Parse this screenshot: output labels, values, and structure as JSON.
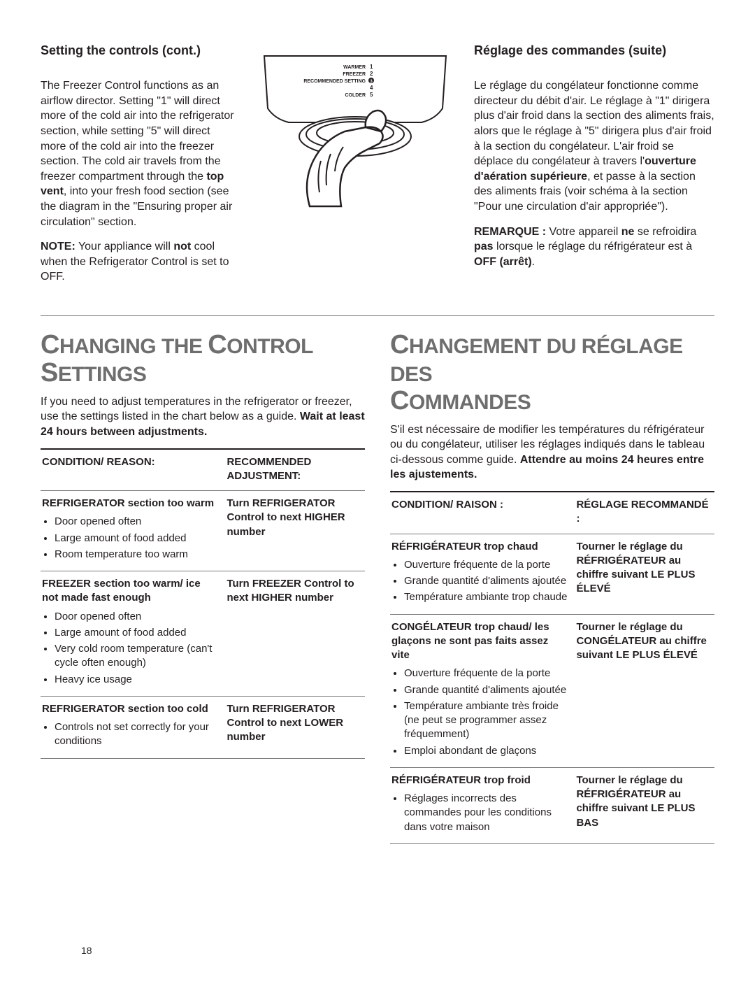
{
  "page_number": "18",
  "top": {
    "left": {
      "heading": "Setting the controls (cont.)",
      "p1_a": "The Freezer Control functions as an airflow director. Setting \"1\" will direct more of the cold air into the refrigerator section, while setting \"5\" will direct more of the cold air into the freezer section. The cold air travels from the freezer compartment through the ",
      "p1_bold": "top vent",
      "p1_b": ", into your fresh food section (see the diagram in the \"Ensuring proper air circulation\" section.",
      "p2_a": "NOTE:",
      "p2_b": " Your appliance will ",
      "p2_c": "not",
      "p2_d": " cool when the Refrigerator Control is set to OFF."
    },
    "dial": {
      "labels": [
        "WARMER",
        "FREEZER",
        "RECOMMENDED SETTING",
        "",
        "COLDER"
      ],
      "nums": [
        "1",
        "2",
        "3",
        "4",
        "5"
      ]
    },
    "right": {
      "heading": "Réglage des commandes (suite)",
      "p1_a": "Le réglage du congélateur fonctionne comme directeur du débit d'air. Le réglage à \"1\" dirigera plus d'air froid dans la section des aliments frais, alors que le réglage à \"5\" dirigera plus d'air froid à la section du congélateur. L'air froid se déplace du congélateur à travers l'",
      "p1_bold": "ouverture d'aération supérieure",
      "p1_b": ", et passe à la section des aliments frais (voir schéma à la section \"Pour une circulation d'air appropriée\").",
      "p2_a": "REMARQUE :",
      "p2_b": " Votre appareil ",
      "p2_c": "ne",
      "p2_d": " se refroidira ",
      "p2_e": "pas",
      "p2_f": " lorsque le réglage du réfrigérateur est à ",
      "p2_g": "OFF (arrêt)",
      "p2_h": "."
    }
  },
  "left": {
    "title_a": "C",
    "title_b": "HANGING THE ",
    "title_c": "C",
    "title_d": "ONTROL ",
    "title_e": "S",
    "title_f": "ETTINGS",
    "intro_a": "If you need to adjust temperatures in the refrigerator or freezer, use the settings listed in the chart below as a guide. ",
    "intro_b": "Wait at least 24 hours between adjustments.",
    "th1": "CONDITION/ REASON:",
    "th2": "RECOMMENDED ADJUSTMENT:",
    "rows": [
      {
        "cond_title": "REFRIGERATOR section too warm",
        "bullets": [
          "Door opened often",
          "Large amount of food added",
          "Room temperature too warm"
        ],
        "rec": "Turn REFRIGERATOR Control to next HIGHER number"
      },
      {
        "cond_title": "FREEZER section too warm/ ice not made fast enough",
        "bullets": [
          "Door opened often",
          "Large amount of food added",
          "Very cold room temperature (can't cycle often enough)",
          "Heavy ice usage"
        ],
        "rec": "Turn FREEZER Control to next HIGHER number"
      },
      {
        "cond_title": "REFRIGERATOR section too cold",
        "bullets": [
          "Controls not set correctly for your conditions"
        ],
        "rec": "Turn REFRIGERATOR Control to next LOWER number"
      }
    ]
  },
  "right": {
    "title_a": "C",
    "title_b": "HANGEMENT DU RÉGLAGE DES ",
    "title_c": "C",
    "title_d": "OMMANDES",
    "intro_a": "S'il est nécessaire de modifier les températures du réfrigérateur ou du congélateur, utiliser les réglages indiqués dans le tableau ci-dessous comme guide. ",
    "intro_b": "Attendre au moins 24 heures entre les ajustements.",
    "th1": "CONDITION/ RAISON :",
    "th2": "RÉGLAGE RECOMMANDÉ :",
    "rows": [
      {
        "cond_title": "RÉFRIGÉRATEUR trop chaud",
        "bullets": [
          "Ouverture fréquente de la porte",
          "Grande quantité d'aliments ajoutée",
          "Température ambiante trop chaude"
        ],
        "rec": "Tourner le réglage du RÉFRIGÉRATEUR au chiffre suivant LE PLUS ÉLEVÉ"
      },
      {
        "cond_title": "CONGÉLATEUR trop chaud/ les glaçons ne sont pas faits assez vite",
        "bullets": [
          "Ouverture fréquente de la porte",
          "Grande quantité d'aliments ajoutée",
          "Température ambiante très froide (ne peut se programmer assez fréquemment)",
          "Emploi abondant de glaçons"
        ],
        "rec": "Tourner le réglage du CONGÉLATEUR au chiffre suivant LE PLUS ÉLEVÉ"
      },
      {
        "cond_title": "RÉFRIGÉRATEUR trop froid",
        "bullets": [
          "Réglages incorrects des commandes pour les conditions dans votre maison"
        ],
        "rec": "Tourner le réglage du RÉFRIGÉRATEUR au chiffre suivant LE PLUS BAS"
      }
    ]
  },
  "colors": {
    "heading_gray": "#6e6e6e",
    "rule": "#7a7a7a",
    "text": "#231f20"
  }
}
